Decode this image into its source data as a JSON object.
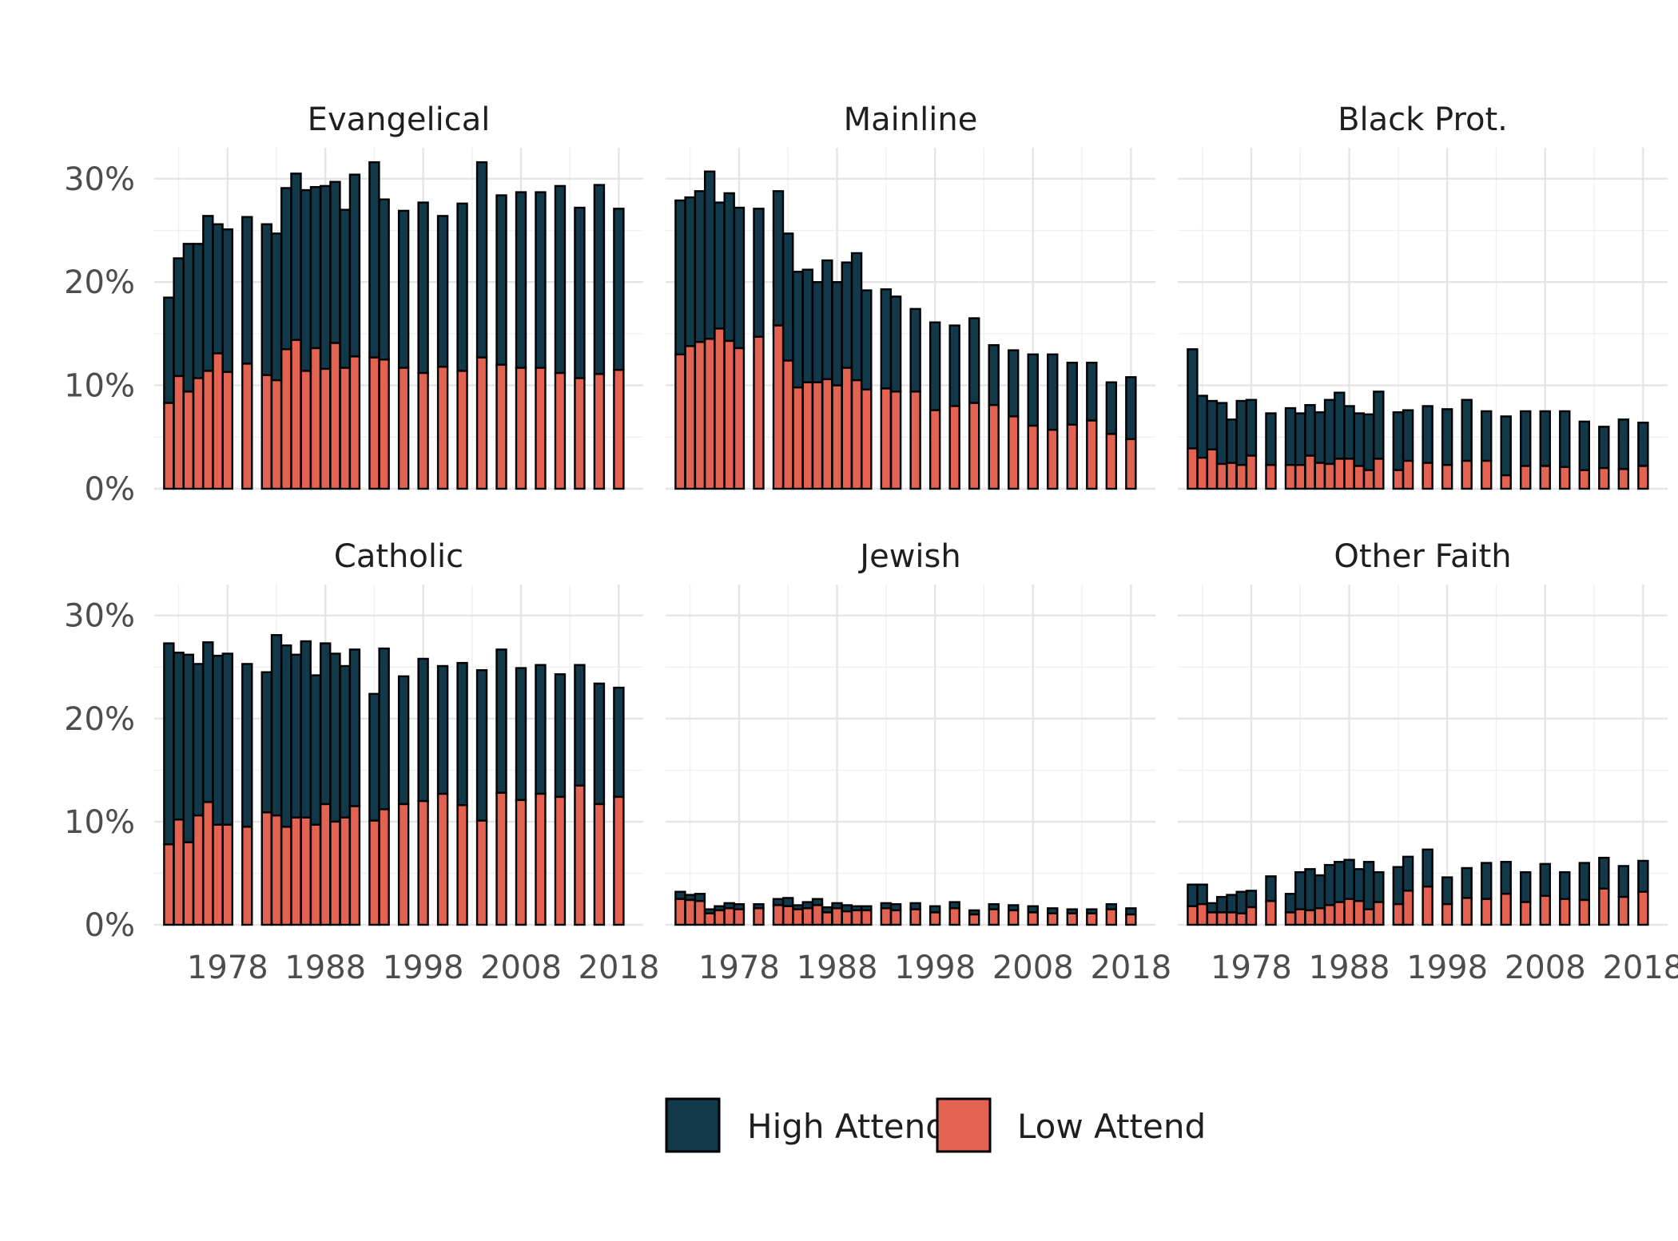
{
  "chart_data": {
    "type": "bar",
    "stacked": true,
    "title": "",
    "xlabel": "",
    "ylabel": "",
    "ylim": [
      0,
      0.33
    ],
    "y_ticks": [
      0,
      0.1,
      0.2,
      0.3
    ],
    "y_tick_labels": [
      "0%",
      "10%",
      "20%",
      "30%"
    ],
    "x_ticks": [
      1978,
      1988,
      1998,
      2008,
      2018
    ],
    "x_tick_labels": [
      "1978",
      "1988",
      "1998",
      "2008",
      "2018"
    ],
    "xlim": [
      1970.5,
      2020.5
    ],
    "grid": true,
    "legend_position": "bottom",
    "colors": {
      "High Attend": "#12394a",
      "Low Attend": "#e36352",
      "outline": "#000000"
    },
    "series_order": [
      "High Attend",
      "Low Attend"
    ],
    "years": [
      1972,
      1973,
      1974,
      1975,
      1976,
      1977,
      1978,
      1980,
      1982,
      1983,
      1984,
      1985,
      1986,
      1987,
      1988,
      1989,
      1990,
      1991,
      1993,
      1994,
      1996,
      1998,
      2000,
      2002,
      2004,
      2006,
      2008,
      2010,
      2012,
      2014,
      2016,
      2018
    ],
    "facets": [
      {
        "name": "Evangelical",
        "total": [
          0.185,
          0.223,
          0.237,
          0.237,
          0.264,
          0.256,
          0.251,
          0.263,
          0.256,
          0.247,
          0.291,
          0.305,
          0.289,
          0.292,
          0.293,
          0.297,
          0.27,
          0.304,
          0.316,
          0.28,
          0.269,
          0.277,
          0.264,
          0.276,
          0.316,
          0.284,
          0.287,
          0.287,
          0.293,
          0.272,
          0.294,
          0.271
        ],
        "low": [
          0.083,
          0.109,
          0.094,
          0.107,
          0.114,
          0.131,
          0.113,
          0.121,
          0.11,
          0.105,
          0.135,
          0.144,
          0.114,
          0.136,
          0.116,
          0.141,
          0.117,
          0.128,
          0.127,
          0.125,
          0.117,
          0.112,
          0.118,
          0.114,
          0.127,
          0.12,
          0.117,
          0.117,
          0.112,
          0.107,
          0.111,
          0.115
        ]
      },
      {
        "name": "Mainline",
        "total": [
          0.279,
          0.282,
          0.288,
          0.307,
          0.277,
          0.286,
          0.272,
          0.271,
          0.288,
          0.247,
          0.21,
          0.212,
          0.2,
          0.221,
          0.2,
          0.219,
          0.228,
          0.192,
          0.193,
          0.186,
          0.174,
          0.161,
          0.158,
          0.165,
          0.139,
          0.134,
          0.13,
          0.13,
          0.122,
          0.122,
          0.103,
          0.108
        ],
        "low": [
          0.13,
          0.138,
          0.142,
          0.145,
          0.155,
          0.143,
          0.136,
          0.147,
          0.158,
          0.124,
          0.098,
          0.103,
          0.103,
          0.106,
          0.1,
          0.117,
          0.105,
          0.096,
          0.097,
          0.094,
          0.094,
          0.076,
          0.08,
          0.083,
          0.081,
          0.07,
          0.061,
          0.057,
          0.062,
          0.066,
          0.053,
          0.048
        ]
      },
      {
        "name": "Black Prot.",
        "total": [
          0.135,
          0.09,
          0.085,
          0.083,
          0.067,
          0.085,
          0.086,
          0.073,
          0.078,
          0.073,
          0.081,
          0.074,
          0.086,
          0.093,
          0.08,
          0.073,
          0.072,
          0.094,
          0.074,
          0.076,
          0.08,
          0.077,
          0.086,
          0.075,
          0.07,
          0.075,
          0.075,
          0.075,
          0.065,
          0.06,
          0.067,
          0.064
        ],
        "low": [
          0.039,
          0.03,
          0.038,
          0.024,
          0.025,
          0.023,
          0.032,
          0.023,
          0.023,
          0.023,
          0.032,
          0.025,
          0.024,
          0.029,
          0.029,
          0.022,
          0.018,
          0.029,
          0.018,
          0.027,
          0.025,
          0.023,
          0.027,
          0.027,
          0.013,
          0.022,
          0.022,
          0.021,
          0.018,
          0.02,
          0.019,
          0.022
        ]
      },
      {
        "name": "Catholic",
        "total": [
          0.273,
          0.264,
          0.262,
          0.253,
          0.274,
          0.261,
          0.263,
          0.253,
          0.245,
          0.281,
          0.271,
          0.262,
          0.275,
          0.242,
          0.273,
          0.263,
          0.251,
          0.267,
          0.224,
          0.268,
          0.241,
          0.258,
          0.251,
          0.254,
          0.247,
          0.267,
          0.249,
          0.252,
          0.243,
          0.252,
          0.234,
          0.23
        ],
        "low": [
          0.078,
          0.102,
          0.08,
          0.106,
          0.119,
          0.097,
          0.097,
          0.095,
          0.109,
          0.106,
          0.095,
          0.104,
          0.104,
          0.097,
          0.117,
          0.1,
          0.104,
          0.115,
          0.101,
          0.112,
          0.117,
          0.12,
          0.127,
          0.116,
          0.101,
          0.128,
          0.121,
          0.127,
          0.124,
          0.135,
          0.117,
          0.124
        ]
      },
      {
        "name": "Jewish",
        "total": [
          0.032,
          0.029,
          0.03,
          0.015,
          0.018,
          0.021,
          0.02,
          0.02,
          0.025,
          0.026,
          0.019,
          0.022,
          0.025,
          0.017,
          0.021,
          0.019,
          0.018,
          0.018,
          0.021,
          0.02,
          0.021,
          0.018,
          0.022,
          0.014,
          0.02,
          0.019,
          0.018,
          0.016,
          0.015,
          0.015,
          0.02,
          0.016
        ],
        "low": [
          0.025,
          0.024,
          0.023,
          0.011,
          0.014,
          0.016,
          0.015,
          0.016,
          0.019,
          0.018,
          0.015,
          0.016,
          0.019,
          0.012,
          0.016,
          0.013,
          0.014,
          0.014,
          0.016,
          0.014,
          0.015,
          0.012,
          0.016,
          0.01,
          0.015,
          0.014,
          0.012,
          0.011,
          0.011,
          0.011,
          0.015,
          0.01
        ]
      },
      {
        "name": "Other Faith",
        "total": [
          0.039,
          0.039,
          0.021,
          0.027,
          0.029,
          0.032,
          0.033,
          0.047,
          0.03,
          0.051,
          0.054,
          0.048,
          0.058,
          0.061,
          0.063,
          0.054,
          0.061,
          0.051,
          0.056,
          0.066,
          0.073,
          0.046,
          0.055,
          0.06,
          0.061,
          0.051,
          0.059,
          0.051,
          0.06,
          0.065,
          0.057,
          0.062
        ],
        "low": [
          0.018,
          0.02,
          0.012,
          0.012,
          0.012,
          0.011,
          0.017,
          0.023,
          0.012,
          0.015,
          0.014,
          0.016,
          0.019,
          0.022,
          0.025,
          0.023,
          0.015,
          0.022,
          0.02,
          0.033,
          0.037,
          0.02,
          0.026,
          0.025,
          0.03,
          0.022,
          0.028,
          0.025,
          0.024,
          0.035,
          0.027,
          0.032
        ]
      }
    ]
  }
}
